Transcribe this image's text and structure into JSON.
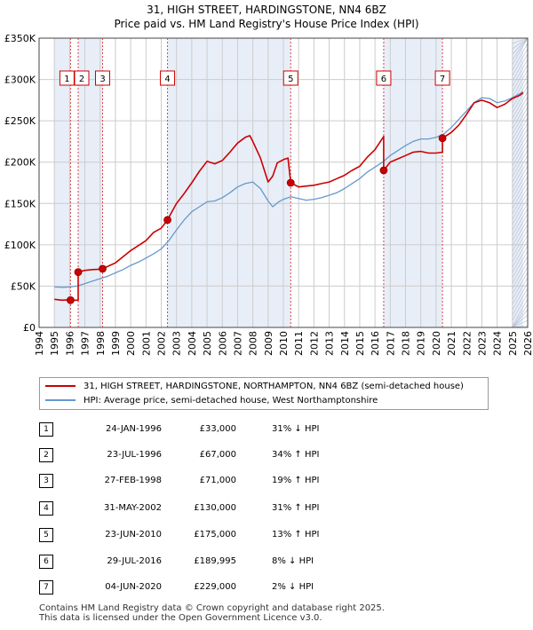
{
  "title_line1": "31, HIGH STREET, HARDINGSTONE, NN4 6BZ",
  "title_line2": "Price paid vs. HM Land Registry's House Price Index (HPI)",
  "legend": {
    "property": "31, HIGH STREET, HARDINGSTONE, NORTHAMPTON, NN4 6BZ (semi-detached house)",
    "hpi": "HPI: Average price, semi-detached house, West Northamptonshire"
  },
  "colors": {
    "property": "#cc0000",
    "hpi": "#6699cc",
    "shade": "#e8eef8",
    "grid": "#cccccc",
    "vline": "#dd4444"
  },
  "sales": [
    {
      "num": "1",
      "date": "24-JAN-1996",
      "price": "£33,000",
      "hpi": "31% ↓ HPI"
    },
    {
      "num": "2",
      "date": "23-JUL-1996",
      "price": "£67,000",
      "hpi": "34% ↑ HPI"
    },
    {
      "num": "3",
      "date": "27-FEB-1998",
      "price": "£71,000",
      "hpi": "19% ↑ HPI"
    },
    {
      "num": "4",
      "date": "31-MAY-2002",
      "price": "£130,000",
      "hpi": "31% ↑ HPI"
    },
    {
      "num": "5",
      "date": "23-JUN-2010",
      "price": "£175,000",
      "hpi": "13% ↑ HPI"
    },
    {
      "num": "6",
      "date": "29-JUL-2016",
      "price": "£189,995",
      "hpi": "8% ↓ HPI"
    },
    {
      "num": "7",
      "date": "04-JUN-2020",
      "price": "£229,000",
      "hpi": "2% ↓ HPI"
    }
  ],
  "footer_line1": "Contains HM Land Registry data © Crown copyright and database right 2025.",
  "footer_line2": "This data is licensed under the Open Government Licence v3.0.",
  "chart_data": {
    "type": "line",
    "title": "31, HIGH STREET, HARDINGSTONE, NN4 6BZ",
    "subtitle": "Price paid vs. HM Land Registry's House Price Index (HPI)",
    "xlim": [
      1994,
      2026
    ],
    "ylim": [
      0,
      350000
    ],
    "x_ticks": [
      "1994",
      "1995",
      "1996",
      "1997",
      "1998",
      "1999",
      "2000",
      "2001",
      "2002",
      "2003",
      "2004",
      "2005",
      "2006",
      "2007",
      "2008",
      "2009",
      "2010",
      "2011",
      "2012",
      "2013",
      "2014",
      "2015",
      "2016",
      "2017",
      "2018",
      "2019",
      "2020",
      "2021",
      "2022",
      "2023",
      "2024",
      "2025",
      "2026"
    ],
    "y_ticks": [
      "£0",
      "£50K",
      "£100K",
      "£150K",
      "£200K",
      "£250K",
      "£300K",
      "£350K"
    ],
    "y_tick_values": [
      0,
      50000,
      100000,
      150000,
      200000,
      250000,
      300000,
      350000
    ],
    "grid": true,
    "legend_position": "below",
    "shaded_spans": [
      [
        1995.0,
        1996.06
      ],
      [
        1996.56,
        1998.16
      ],
      [
        2002.41,
        2010.48
      ],
      [
        2016.57,
        2020.42
      ],
      [
        2025.0,
        2025.7
      ]
    ],
    "sale_points": [
      {
        "label": "1",
        "x": 1996.06,
        "y": 33000
      },
      {
        "label": "2",
        "x": 1996.56,
        "y": 67000
      },
      {
        "label": "3",
        "x": 1998.16,
        "y": 71000
      },
      {
        "label": "4",
        "x": 2002.41,
        "y": 130000
      },
      {
        "label": "5",
        "x": 2010.48,
        "y": 175000
      },
      {
        "label": "6",
        "x": 2016.57,
        "y": 189995
      },
      {
        "label": "7",
        "x": 2020.42,
        "y": 229000
      }
    ],
    "series": [
      {
        "name": "31, HIGH STREET, HARDINGSTONE, NORTHAMPTON, NN4 6BZ (semi-detached house)",
        "x": [
          1995.0,
          1995.5,
          1996.06,
          1996.06,
          1996.56,
          1996.56,
          1997.0,
          1997.5,
          1998.16,
          1998.16,
          1999.0,
          2000.0,
          2001.0,
          2001.5,
          2002.0,
          2002.41,
          2002.41,
          2003.0,
          2003.5,
          2004.0,
          2004.5,
          2005.0,
          2005.5,
          2006.0,
          2006.5,
          2007.0,
          2007.5,
          2007.8,
          2008.0,
          2008.5,
          2009.0,
          2009.3,
          2009.6,
          2010.0,
          2010.3,
          2010.48,
          2010.48,
          2011.0,
          2011.5,
          2012.0,
          2012.5,
          2013.0,
          2013.5,
          2014.0,
          2014.5,
          2015.0,
          2015.5,
          2016.0,
          2016.5,
          2016.57,
          2016.57,
          2017.0,
          2017.5,
          2018.0,
          2018.5,
          2019.0,
          2019.5,
          2020.0,
          2020.42,
          2020.42,
          2021.0,
          2021.5,
          2022.0,
          2022.5,
          2023.0,
          2023.5,
          2024.0,
          2024.5,
          2025.0,
          2025.5,
          2025.7
        ],
        "values": [
          34000,
          33000,
          33500,
          33000,
          33000,
          67000,
          69000,
          70000,
          70500,
          71000,
          78000,
          93000,
          105000,
          115000,
          120000,
          130000,
          130000,
          150000,
          162000,
          175000,
          189000,
          201000,
          198000,
          202000,
          212000,
          223000,
          230000,
          232000,
          225000,
          205000,
          176000,
          183000,
          199000,
          203000,
          205000,
          175000,
          175000,
          170000,
          171000,
          172000,
          174000,
          176000,
          180000,
          184000,
          190000,
          195000,
          206000,
          215000,
          229000,
          231000,
          189995,
          200000,
          204000,
          208000,
          212000,
          213000,
          211000,
          211000,
          212000,
          229000,
          236000,
          245000,
          258000,
          272000,
          275000,
          272000,
          266000,
          270000,
          277000,
          281000,
          284000
        ]
      },
      {
        "name": "HPI: Average price, semi-detached house, West Northamptonshire",
        "x": [
          1995.0,
          1995.5,
          1996.0,
          1996.5,
          1997.0,
          1997.5,
          1998.0,
          1998.5,
          1999.0,
          1999.5,
          2000.0,
          2000.5,
          2001.0,
          2001.5,
          2002.0,
          2002.5,
          2003.0,
          2003.5,
          2004.0,
          2004.5,
          2005.0,
          2005.5,
          2006.0,
          2006.5,
          2007.0,
          2007.5,
          2008.0,
          2008.5,
          2009.0,
          2009.3,
          2009.7,
          2010.0,
          2010.5,
          2011.0,
          2011.5,
          2012.0,
          2012.5,
          2013.0,
          2013.5,
          2014.0,
          2014.5,
          2015.0,
          2015.5,
          2016.0,
          2016.5,
          2017.0,
          2017.5,
          2018.0,
          2018.5,
          2019.0,
          2019.5,
          2020.0,
          2020.5,
          2021.0,
          2021.5,
          2022.0,
          2022.5,
          2023.0,
          2023.5,
          2024.0,
          2024.5,
          2025.0,
          2025.5,
          2025.7
        ],
        "values": [
          49000,
          48500,
          49000,
          50000,
          53000,
          56000,
          59000,
          62000,
          66000,
          70000,
          75000,
          79000,
          84000,
          89000,
          95000,
          105000,
          118000,
          130000,
          140000,
          146000,
          152000,
          153000,
          157000,
          163000,
          170000,
          174000,
          176000,
          168000,
          153000,
          146000,
          152000,
          155000,
          158000,
          156000,
          154000,
          155000,
          157000,
          160000,
          163000,
          168000,
          174000,
          180000,
          188000,
          194000,
          200000,
          208000,
          214000,
          220000,
          225000,
          228000,
          228000,
          230000,
          234000,
          242000,
          252000,
          262000,
          272000,
          278000,
          277000,
          272000,
          274000,
          278000,
          283000,
          285000
        ]
      }
    ]
  }
}
